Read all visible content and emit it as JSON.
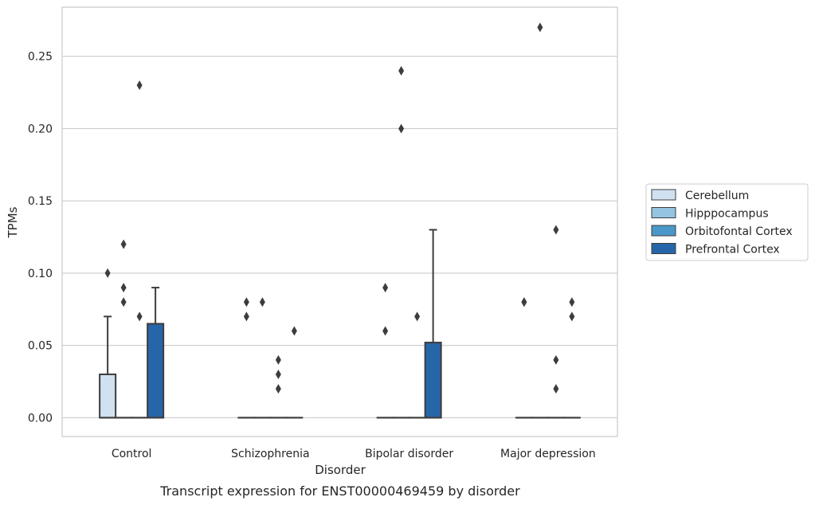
{
  "chart_data": {
    "type": "box",
    "title": "Transcript expression for ENST00000469459 by disorder",
    "xlabel": "Disorder",
    "ylabel": "TPMs",
    "ylim": [
      -0.013,
      0.284
    ],
    "y_ticks": [
      0.0,
      0.05,
      0.1,
      0.15,
      0.2,
      0.25
    ],
    "y_tick_labels": [
      "0.00",
      "0.05",
      "0.10",
      "0.15",
      "0.20",
      "0.25"
    ],
    "grid": "horizontal",
    "legend_position": "right",
    "categories": [
      "Control",
      "Schizophrenia",
      "Bipolar disorder",
      "Major depression"
    ],
    "series": [
      {
        "name": "Cerebellum",
        "color": "#d0e1f2",
        "boxes": [
          {
            "q1": 0.0,
            "median": 0.0,
            "q3": 0.03,
            "whisker_low": 0.0,
            "whisker_high": 0.07,
            "outliers": [
              0.1
            ]
          },
          {
            "q1": 0.0,
            "median": 0.0,
            "q3": 0.0,
            "whisker_low": 0.0,
            "whisker_high": 0.0,
            "outliers": [
              0.07,
              0.08
            ]
          },
          {
            "q1": 0.0,
            "median": 0.0,
            "q3": 0.0,
            "whisker_low": 0.0,
            "whisker_high": 0.0,
            "outliers": [
              0.06,
              0.09
            ]
          },
          {
            "q1": 0.0,
            "median": 0.0,
            "q3": 0.0,
            "whisker_low": 0.0,
            "whisker_high": 0.0,
            "outliers": [
              0.08,
              0.08
            ]
          }
        ]
      },
      {
        "name": "Hipppocampus",
        "color": "#94c4df",
        "boxes": [
          {
            "q1": 0.0,
            "median": 0.0,
            "q3": 0.0,
            "whisker_low": 0.0,
            "whisker_high": 0.0,
            "outliers": [
              0.08,
              0.09,
              0.12
            ]
          },
          {
            "q1": 0.0,
            "median": 0.0,
            "q3": 0.0,
            "whisker_low": 0.0,
            "whisker_high": 0.0,
            "outliers": [
              0.08
            ]
          },
          {
            "q1": 0.0,
            "median": 0.0,
            "q3": 0.0,
            "whisker_low": 0.0,
            "whisker_high": 0.0,
            "outliers": [
              0.2,
              0.24
            ]
          },
          {
            "q1": 0.0,
            "median": 0.0,
            "q3": 0.0,
            "whisker_low": 0.0,
            "whisker_high": 0.0,
            "outliers": [
              0.27
            ]
          }
        ]
      },
      {
        "name": "Orbitofontal Cortex",
        "color": "#4a98c9",
        "boxes": [
          {
            "q1": 0.0,
            "median": 0.0,
            "q3": 0.0,
            "whisker_low": 0.0,
            "whisker_high": 0.0,
            "outliers": [
              0.07,
              0.23
            ]
          },
          {
            "q1": 0.0,
            "median": 0.0,
            "q3": 0.0,
            "whisker_low": 0.0,
            "whisker_high": 0.0,
            "outliers": [
              0.02,
              0.03,
              0.04
            ]
          },
          {
            "q1": 0.0,
            "median": 0.0,
            "q3": 0.0,
            "whisker_low": 0.0,
            "whisker_high": 0.0,
            "outliers": [
              0.07
            ]
          },
          {
            "q1": 0.0,
            "median": 0.0,
            "q3": 0.0,
            "whisker_low": 0.0,
            "whisker_high": 0.0,
            "outliers": [
              0.02,
              0.04,
              0.13
            ]
          }
        ]
      },
      {
        "name": "Prefrontal Cortex",
        "color": "#2666a8",
        "boxes": [
          {
            "q1": 0.0,
            "median": 0.0,
            "q3": 0.065,
            "whisker_low": 0.0,
            "whisker_high": 0.09,
            "outliers": []
          },
          {
            "q1": 0.0,
            "median": 0.0,
            "q3": 0.0,
            "whisker_low": 0.0,
            "whisker_high": 0.0,
            "outliers": [
              0.06
            ]
          },
          {
            "q1": 0.0,
            "median": 0.0,
            "q3": 0.052,
            "whisker_low": 0.0,
            "whisker_high": 0.13,
            "outliers": []
          },
          {
            "q1": 0.0,
            "median": 0.0,
            "q3": 0.0,
            "whisker_low": 0.0,
            "whisker_high": 0.0,
            "outliers": [
              0.07,
              0.08
            ]
          }
        ]
      }
    ]
  }
}
